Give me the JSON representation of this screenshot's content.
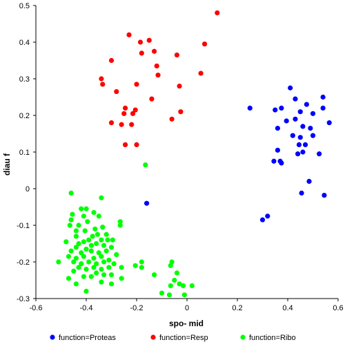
{
  "chart_data": {
    "type": "scatter",
    "title": "",
    "xlabel": "spo- mid",
    "ylabel": "diau f",
    "xlim": [
      -0.6,
      0.6
    ],
    "ylim": [
      -0.3,
      0.5
    ],
    "xticks": [
      -0.6,
      -0.4,
      -0.2,
      0,
      0.2,
      0.4,
      0.6
    ],
    "xtick_labels": [
      "-0.6",
      "-0.4",
      "-0.2",
      "0",
      "0.2",
      "0.4",
      "0.6"
    ],
    "yticks": [
      -0.3,
      -0.2,
      -0.1,
      0,
      0.1,
      0.2,
      0.3,
      0.4,
      0.5
    ],
    "ytick_labels": [
      "-0.3",
      "-0.2",
      "-0.1",
      "0",
      "0.1",
      "0.2",
      "0.3",
      "0.4",
      "0.5"
    ],
    "grid": false,
    "legend_position": "bottom",
    "series": [
      {
        "name": "function=Proteas",
        "color": "#0000ff",
        "points": [
          [
            0.25,
            0.22
          ],
          [
            0.35,
            0.215
          ],
          [
            0.375,
            0.22
          ],
          [
            0.41,
            0.275
          ],
          [
            0.43,
            0.245
          ],
          [
            0.45,
            0.21
          ],
          [
            0.475,
            0.23
          ],
          [
            0.5,
            0.205
          ],
          [
            0.54,
            0.25
          ],
          [
            0.54,
            0.22
          ],
          [
            0.565,
            0.18
          ],
          [
            0.43,
            0.19
          ],
          [
            0.46,
            0.17
          ],
          [
            0.49,
            0.165
          ],
          [
            0.36,
            0.165
          ],
          [
            0.395,
            0.185
          ],
          [
            0.42,
            0.145
          ],
          [
            0.5,
            0.145
          ],
          [
            0.45,
            0.14
          ],
          [
            0.47,
            0.12
          ],
          [
            0.445,
            0.12
          ],
          [
            0.44,
            0.095
          ],
          [
            0.46,
            0.1
          ],
          [
            0.525,
            0.095
          ],
          [
            0.36,
            0.105
          ],
          [
            0.37,
            0.075
          ],
          [
            0.375,
            0.07
          ],
          [
            0.345,
            0.075
          ],
          [
            0.485,
            0.02
          ],
          [
            0.455,
            -0.012
          ],
          [
            0.545,
            -0.018
          ],
          [
            0.32,
            -0.075
          ],
          [
            0.3,
            -0.085
          ],
          [
            -0.16,
            -0.04
          ]
        ]
      },
      {
        "name": "function=Resp",
        "color": "#ff0000",
        "points": [
          [
            0.12,
            0.48
          ],
          [
            -0.23,
            0.42
          ],
          [
            -0.185,
            0.4
          ],
          [
            -0.15,
            0.405
          ],
          [
            0.07,
            0.395
          ],
          [
            -0.18,
            0.37
          ],
          [
            -0.13,
            0.375
          ],
          [
            -0.04,
            0.365
          ],
          [
            -0.3,
            0.35
          ],
          [
            -0.12,
            0.335
          ],
          [
            -0.115,
            0.31
          ],
          [
            0.055,
            0.315
          ],
          [
            -0.34,
            0.3
          ],
          [
            -0.335,
            0.285
          ],
          [
            -0.2,
            0.285
          ],
          [
            -0.03,
            0.28
          ],
          [
            -0.28,
            0.265
          ],
          [
            -0.14,
            0.245
          ],
          [
            -0.245,
            0.22
          ],
          [
            -0.205,
            0.215
          ],
          [
            -0.215,
            0.205
          ],
          [
            -0.025,
            0.21
          ],
          [
            -0.25,
            0.205
          ],
          [
            -0.3,
            0.18
          ],
          [
            -0.26,
            0.175
          ],
          [
            -0.22,
            0.175
          ],
          [
            -0.06,
            0.19
          ],
          [
            -0.245,
            0.12
          ],
          [
            -0.2,
            0.12
          ]
        ]
      },
      {
        "name": "function=Ribo",
        "color": "#00ff00",
        "points": [
          [
            -0.165,
            0.065
          ],
          [
            -0.46,
            -0.012
          ],
          [
            -0.34,
            -0.025
          ],
          [
            -0.42,
            -0.055
          ],
          [
            -0.4,
            -0.055
          ],
          [
            -0.455,
            -0.07
          ],
          [
            -0.41,
            -0.075
          ],
          [
            -0.37,
            -0.065
          ],
          [
            -0.35,
            -0.075
          ],
          [
            -0.46,
            -0.085
          ],
          [
            -0.265,
            -0.09
          ],
          [
            -0.465,
            -0.1
          ],
          [
            -0.43,
            -0.1
          ],
          [
            -0.395,
            -0.09
          ],
          [
            -0.265,
            -0.1
          ],
          [
            -0.44,
            -0.115
          ],
          [
            -0.405,
            -0.115
          ],
          [
            -0.365,
            -0.11
          ],
          [
            -0.335,
            -0.105
          ],
          [
            -0.44,
            -0.13
          ],
          [
            -0.375,
            -0.13
          ],
          [
            -0.355,
            -0.125
          ],
          [
            -0.32,
            -0.125
          ],
          [
            -0.39,
            -0.14
          ],
          [
            -0.41,
            -0.145
          ],
          [
            -0.34,
            -0.14
          ],
          [
            -0.315,
            -0.14
          ],
          [
            -0.295,
            -0.14
          ],
          [
            -0.48,
            -0.145
          ],
          [
            -0.43,
            -0.15
          ],
          [
            -0.38,
            -0.155
          ],
          [
            -0.36,
            -0.15
          ],
          [
            -0.33,
            -0.155
          ],
          [
            -0.44,
            -0.16
          ],
          [
            -0.4,
            -0.165
          ],
          [
            -0.3,
            -0.16
          ],
          [
            -0.46,
            -0.17
          ],
          [
            -0.42,
            -0.175
          ],
          [
            -0.38,
            -0.17
          ],
          [
            -0.35,
            -0.175
          ],
          [
            -0.32,
            -0.17
          ],
          [
            -0.28,
            -0.18
          ],
          [
            -0.47,
            -0.185
          ],
          [
            -0.44,
            -0.19
          ],
          [
            -0.41,
            -0.185
          ],
          [
            -0.37,
            -0.19
          ],
          [
            -0.34,
            -0.185
          ],
          [
            -0.31,
            -0.195
          ],
          [
            -0.45,
            -0.2
          ],
          [
            -0.42,
            -0.205
          ],
          [
            -0.39,
            -0.2
          ],
          [
            -0.36,
            -0.205
          ],
          [
            -0.33,
            -0.2
          ],
          [
            -0.29,
            -0.205
          ],
          [
            -0.51,
            -0.2
          ],
          [
            -0.43,
            -0.215
          ],
          [
            -0.4,
            -0.22
          ],
          [
            -0.37,
            -0.215
          ],
          [
            -0.34,
            -0.22
          ],
          [
            -0.31,
            -0.215
          ],
          [
            -0.26,
            -0.215
          ],
          [
            -0.45,
            -0.225
          ],
          [
            -0.36,
            -0.23
          ],
          [
            -0.38,
            -0.24
          ],
          [
            -0.33,
            -0.235
          ],
          [
            -0.3,
            -0.235
          ],
          [
            -0.41,
            -0.24
          ],
          [
            -0.26,
            -0.245
          ],
          [
            -0.47,
            -0.245
          ],
          [
            -0.34,
            -0.255
          ],
          [
            -0.3,
            -0.26
          ],
          [
            -0.4,
            -0.28
          ],
          [
            -0.44,
            -0.26
          ],
          [
            -0.18,
            -0.2
          ],
          [
            -0.205,
            -0.21
          ],
          [
            -0.18,
            -0.215
          ],
          [
            -0.13,
            -0.235
          ],
          [
            -0.06,
            -0.2
          ],
          [
            -0.065,
            -0.21
          ],
          [
            -0.04,
            -0.23
          ],
          [
            -0.05,
            -0.25
          ],
          [
            -0.03,
            -0.26
          ],
          [
            -0.065,
            -0.265
          ],
          [
            -0.015,
            -0.265
          ],
          [
            0.02,
            -0.265
          ],
          [
            -0.1,
            -0.285
          ],
          [
            -0.07,
            -0.29
          ],
          [
            -0.01,
            -0.29
          ]
        ]
      }
    ]
  }
}
